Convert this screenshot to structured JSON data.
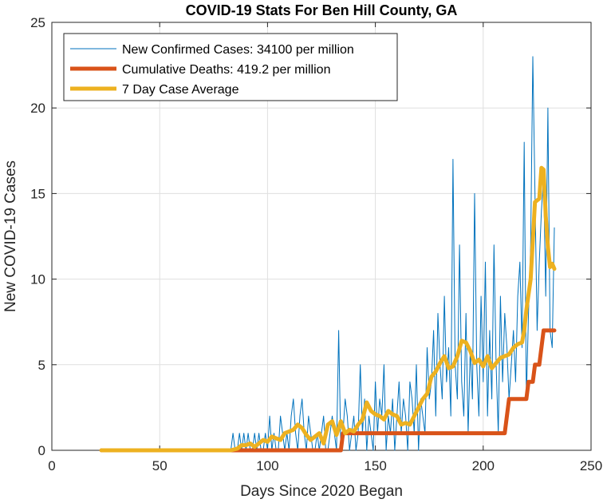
{
  "chart_data": {
    "type": "line",
    "title": "COVID-19 Stats For Ben Hill County, GA",
    "xlabel": "Days Since 2020 Began",
    "ylabel": "New COVID-19 Cases",
    "xlim": [
      0,
      250
    ],
    "ylim": [
      0,
      25
    ],
    "xticks": [
      0,
      50,
      100,
      150,
      200,
      250
    ],
    "yticks": [
      0,
      5,
      10,
      15,
      20,
      25
    ],
    "grid": true,
    "legend_position": "top-left",
    "series": [
      {
        "name": "New Confirmed Cases: 34100 per million",
        "color": "#0072BD",
        "x": [
          83,
          84,
          85,
          86,
          87,
          88,
          89,
          90,
          91,
          92,
          93,
          94,
          95,
          96,
          97,
          98,
          99,
          100,
          101,
          102,
          103,
          104,
          105,
          106,
          107,
          108,
          109,
          110,
          111,
          112,
          113,
          114,
          115,
          116,
          117,
          118,
          119,
          120,
          121,
          122,
          123,
          124,
          125,
          126,
          127,
          128,
          129,
          130,
          131,
          132,
          133,
          134,
          135,
          136,
          137,
          138,
          139,
          140,
          141,
          142,
          143,
          144,
          145,
          146,
          147,
          148,
          149,
          150,
          151,
          152,
          153,
          154,
          155,
          156,
          157,
          158,
          159,
          160,
          161,
          162,
          163,
          164,
          165,
          166,
          167,
          168,
          169,
          170,
          171,
          172,
          173,
          174,
          175,
          176,
          177,
          178,
          179,
          180,
          181,
          182,
          183,
          184,
          185,
          186,
          187,
          188,
          189,
          190,
          191,
          192,
          193,
          194,
          195,
          196,
          197,
          198,
          199,
          200,
          201,
          202,
          203,
          204,
          205,
          206,
          207,
          208,
          209,
          210,
          211,
          212,
          213,
          214,
          215,
          216,
          217,
          218,
          219,
          220,
          221,
          222,
          223,
          224,
          225,
          226,
          227,
          228,
          229,
          230,
          231,
          232,
          233
        ],
        "y": [
          0,
          1,
          0,
          0,
          1,
          0,
          1,
          0,
          1,
          0,
          0,
          1,
          0,
          1,
          0,
          0,
          1,
          0,
          2,
          0,
          1,
          0,
          0,
          2,
          1,
          0,
          1,
          0,
          2,
          3,
          1,
          0,
          2,
          3,
          1,
          0,
          2,
          1,
          0,
          0,
          1,
          0,
          1,
          2,
          0,
          0,
          1,
          2,
          1,
          0,
          7,
          0,
          1,
          3,
          2,
          0,
          1,
          2,
          0,
          1,
          5,
          1,
          3,
          0,
          2,
          1,
          0,
          4,
          1,
          3,
          2,
          5,
          0,
          2,
          1,
          3,
          0,
          2,
          4,
          1,
          3,
          2,
          0,
          4,
          3,
          1,
          5,
          0,
          3,
          2,
          1,
          6,
          3,
          4,
          7,
          2,
          8,
          5,
          3,
          9,
          4,
          6,
          2,
          17,
          5,
          3,
          12,
          4,
          2,
          8,
          1,
          6,
          3,
          15,
          5,
          2,
          9,
          4,
          11,
          2,
          7,
          3,
          12,
          5,
          1,
          9,
          4,
          8,
          6,
          3,
          5,
          7,
          4,
          9,
          11,
          6,
          18,
          3,
          8,
          12,
          23,
          15,
          7,
          11,
          14,
          16,
          9,
          20,
          7,
          6,
          13
        ],
        "line_width": 1
      },
      {
        "name": "Cumulative Deaths: 419.2 per million",
        "color": "#D95319",
        "x": [
          23,
          83,
          84,
          134,
          135,
          136,
          210,
          211,
          212,
          220,
          221,
          223,
          224,
          225,
          226,
          228,
          229,
          233
        ],
        "y": [
          0,
          0,
          0,
          0,
          1,
          1,
          1,
          2,
          3,
          3,
          4,
          4,
          5,
          5,
          5,
          7,
          7,
          7
        ],
        "line_width": 5
      },
      {
        "name": "7 Day Case Average",
        "color": "#EDB120",
        "x": [
          23,
          83,
          86,
          88,
          90,
          92,
          94,
          96,
          98,
          100,
          102,
          104,
          106,
          108,
          110,
          112,
          114,
          116,
          118,
          120,
          122,
          124,
          126,
          128,
          130,
          132,
          134,
          136,
          138,
          140,
          142,
          144,
          146,
          148,
          150,
          152,
          154,
          156,
          158,
          160,
          162,
          164,
          166,
          168,
          170,
          172,
          174,
          176,
          178,
          180,
          182,
          184,
          186,
          188,
          190,
          192,
          194,
          196,
          198,
          200,
          202,
          204,
          206,
          208,
          210,
          212,
          214,
          216,
          218,
          219,
          220,
          222,
          224,
          226,
          227,
          228,
          229,
          230,
          231,
          232,
          233
        ],
        "y": [
          0,
          0,
          0.1,
          0.3,
          0.3,
          0.4,
          0.2,
          0.4,
          0.6,
          0.5,
          0.8,
          0.7,
          0.6,
          1.0,
          1.1,
          1.2,
          1.5,
          1.3,
          0.9,
          0.6,
          0.8,
          1.0,
          0.4,
          1.5,
          1.7,
          0.9,
          1.7,
          1.0,
          1.2,
          1.1,
          1.5,
          1.8,
          2.8,
          2.3,
          2.1,
          2.0,
          1.8,
          2.3,
          2.1,
          2.0,
          1.5,
          1.6,
          1.5,
          2.0,
          2.5,
          3.0,
          3.3,
          4.3,
          4.6,
          5.1,
          5.5,
          4.8,
          4.9,
          5.5,
          6.4,
          6.3,
          5.8,
          5.1,
          5.3,
          4.9,
          5.5,
          4.8,
          5.1,
          5.4,
          5.5,
          5.6,
          6.0,
          6.2,
          6.3,
          7.0,
          8.2,
          10.0,
          14.5,
          14.7,
          16.5,
          16.4,
          13.7,
          11.9,
          10.7,
          10.9,
          10.6
        ],
        "line_width": 5
      }
    ]
  }
}
